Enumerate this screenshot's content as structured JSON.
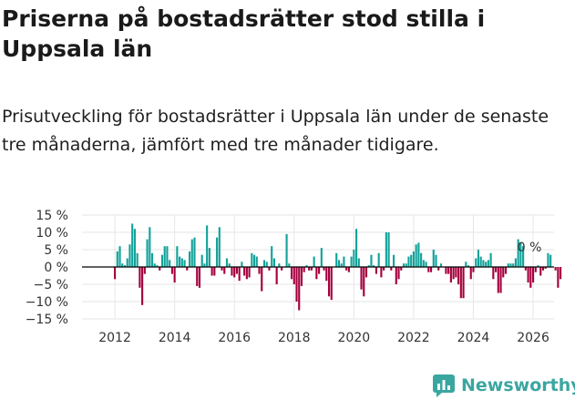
{
  "title": "Priserna på bostadsrätter stod stilla i Uppsala län",
  "subtitle": "Prisutveckling för bostadsrätter i Uppsala län under de senaste tre månaderna, jämfört med tre månader tidigare.",
  "brand": {
    "name": "Newsworthy",
    "color": "#3aa6a0",
    "icon": "newsworthy-logo-icon"
  },
  "colors": {
    "positive": "#12a29a",
    "negative": "#a5003d",
    "zero_line": "#000000",
    "grid": "#e6e6e6"
  },
  "chart_data": {
    "type": "bar",
    "title": "Priserna på bostadsrätter stod stilla i Uppsala län",
    "subtitle": "Prisutveckling för bostadsrätter i Uppsala län under de senaste tre månaderna, jämfört med tre månader tidigare.",
    "xlabel": "",
    "ylabel": "",
    "x_start": 2012.0,
    "x_step_months": 1,
    "xlim": [
      2010.9,
      2026.7
    ],
    "ylim": [
      -15,
      15
    ],
    "yticks": [
      -15,
      -10,
      -5,
      0,
      5,
      10,
      15
    ],
    "ytick_labels": [
      "−15 %",
      "−10 %",
      "−5 %",
      "0 %",
      "5 %",
      "10 %",
      "15 %"
    ],
    "xticks": [
      2012,
      2014,
      2016,
      2018,
      2020,
      2022,
      2024,
      2026
    ],
    "xtick_labels": [
      "2012",
      "2014",
      "2016",
      "2018",
      "2020",
      "2022",
      "2024",
      "2026"
    ],
    "annotation": {
      "text": "0 %",
      "x": 2025.9,
      "y": 0
    },
    "values": [
      -3.5,
      4.5,
      6,
      1,
      0.5,
      2.5,
      6.5,
      12.5,
      11,
      4,
      -6,
      -11,
      -2,
      8,
      11.5,
      4,
      1,
      0.5,
      -1,
      3.5,
      6,
      6,
      2,
      -2,
      -4.5,
      6,
      3,
      2.5,
      2,
      -1,
      4.5,
      8,
      8.5,
      -5.5,
      -6,
      3.5,
      1,
      12,
      5.5,
      -2.5,
      -2.5,
      8.5,
      11.5,
      -1,
      -2,
      2.5,
      1,
      -2.5,
      -3,
      -2,
      -4,
      1.5,
      -2.5,
      -3.5,
      -3,
      4,
      3.5,
      3,
      -2,
      -7,
      2,
      1.5,
      -1,
      6,
      2.5,
      -5,
      1,
      -1,
      0,
      9.5,
      1,
      -3.5,
      -5,
      -10,
      -12.5,
      -5.5,
      -1.5,
      0.5,
      -1,
      -1,
      3,
      -3.5,
      -2,
      5.5,
      -1,
      -4,
      -8.5,
      -9.5,
      0,
      4,
      2,
      1,
      3,
      -1,
      -1.5,
      3,
      5,
      11,
      2.5,
      -6.5,
      -8.5,
      -3,
      0.5,
      3.5,
      0.5,
      -2,
      4,
      -3,
      -1,
      10,
      10,
      -1,
      3.5,
      -5,
      -3.5,
      -1,
      1,
      1,
      3,
      3.5,
      4.5,
      6.5,
      7,
      4,
      2,
      1.5,
      -1.5,
      -1.5,
      5,
      3.5,
      -1,
      1,
      0,
      -2,
      -2,
      -4.5,
      -3.5,
      -3,
      -5,
      -9,
      -9,
      1.5,
      0.5,
      -3.5,
      -1.5,
      2.5,
      5,
      3,
      2,
      1.5,
      2,
      4,
      -3.5,
      -1.5,
      -7.5,
      -7.5,
      -3,
      -2,
      1,
      1,
      1,
      2.5,
      8,
      7,
      6,
      -1,
      -4.5,
      -6,
      -4.5,
      -1.5,
      0.5,
      -2.5,
      -1,
      -0.5,
      4,
      3.5,
      0,
      -1,
      -6,
      -3.5,
      0
    ],
    "series": [
      {
        "name": "Prisutveckling",
        "values_ref": "values"
      }
    ]
  }
}
